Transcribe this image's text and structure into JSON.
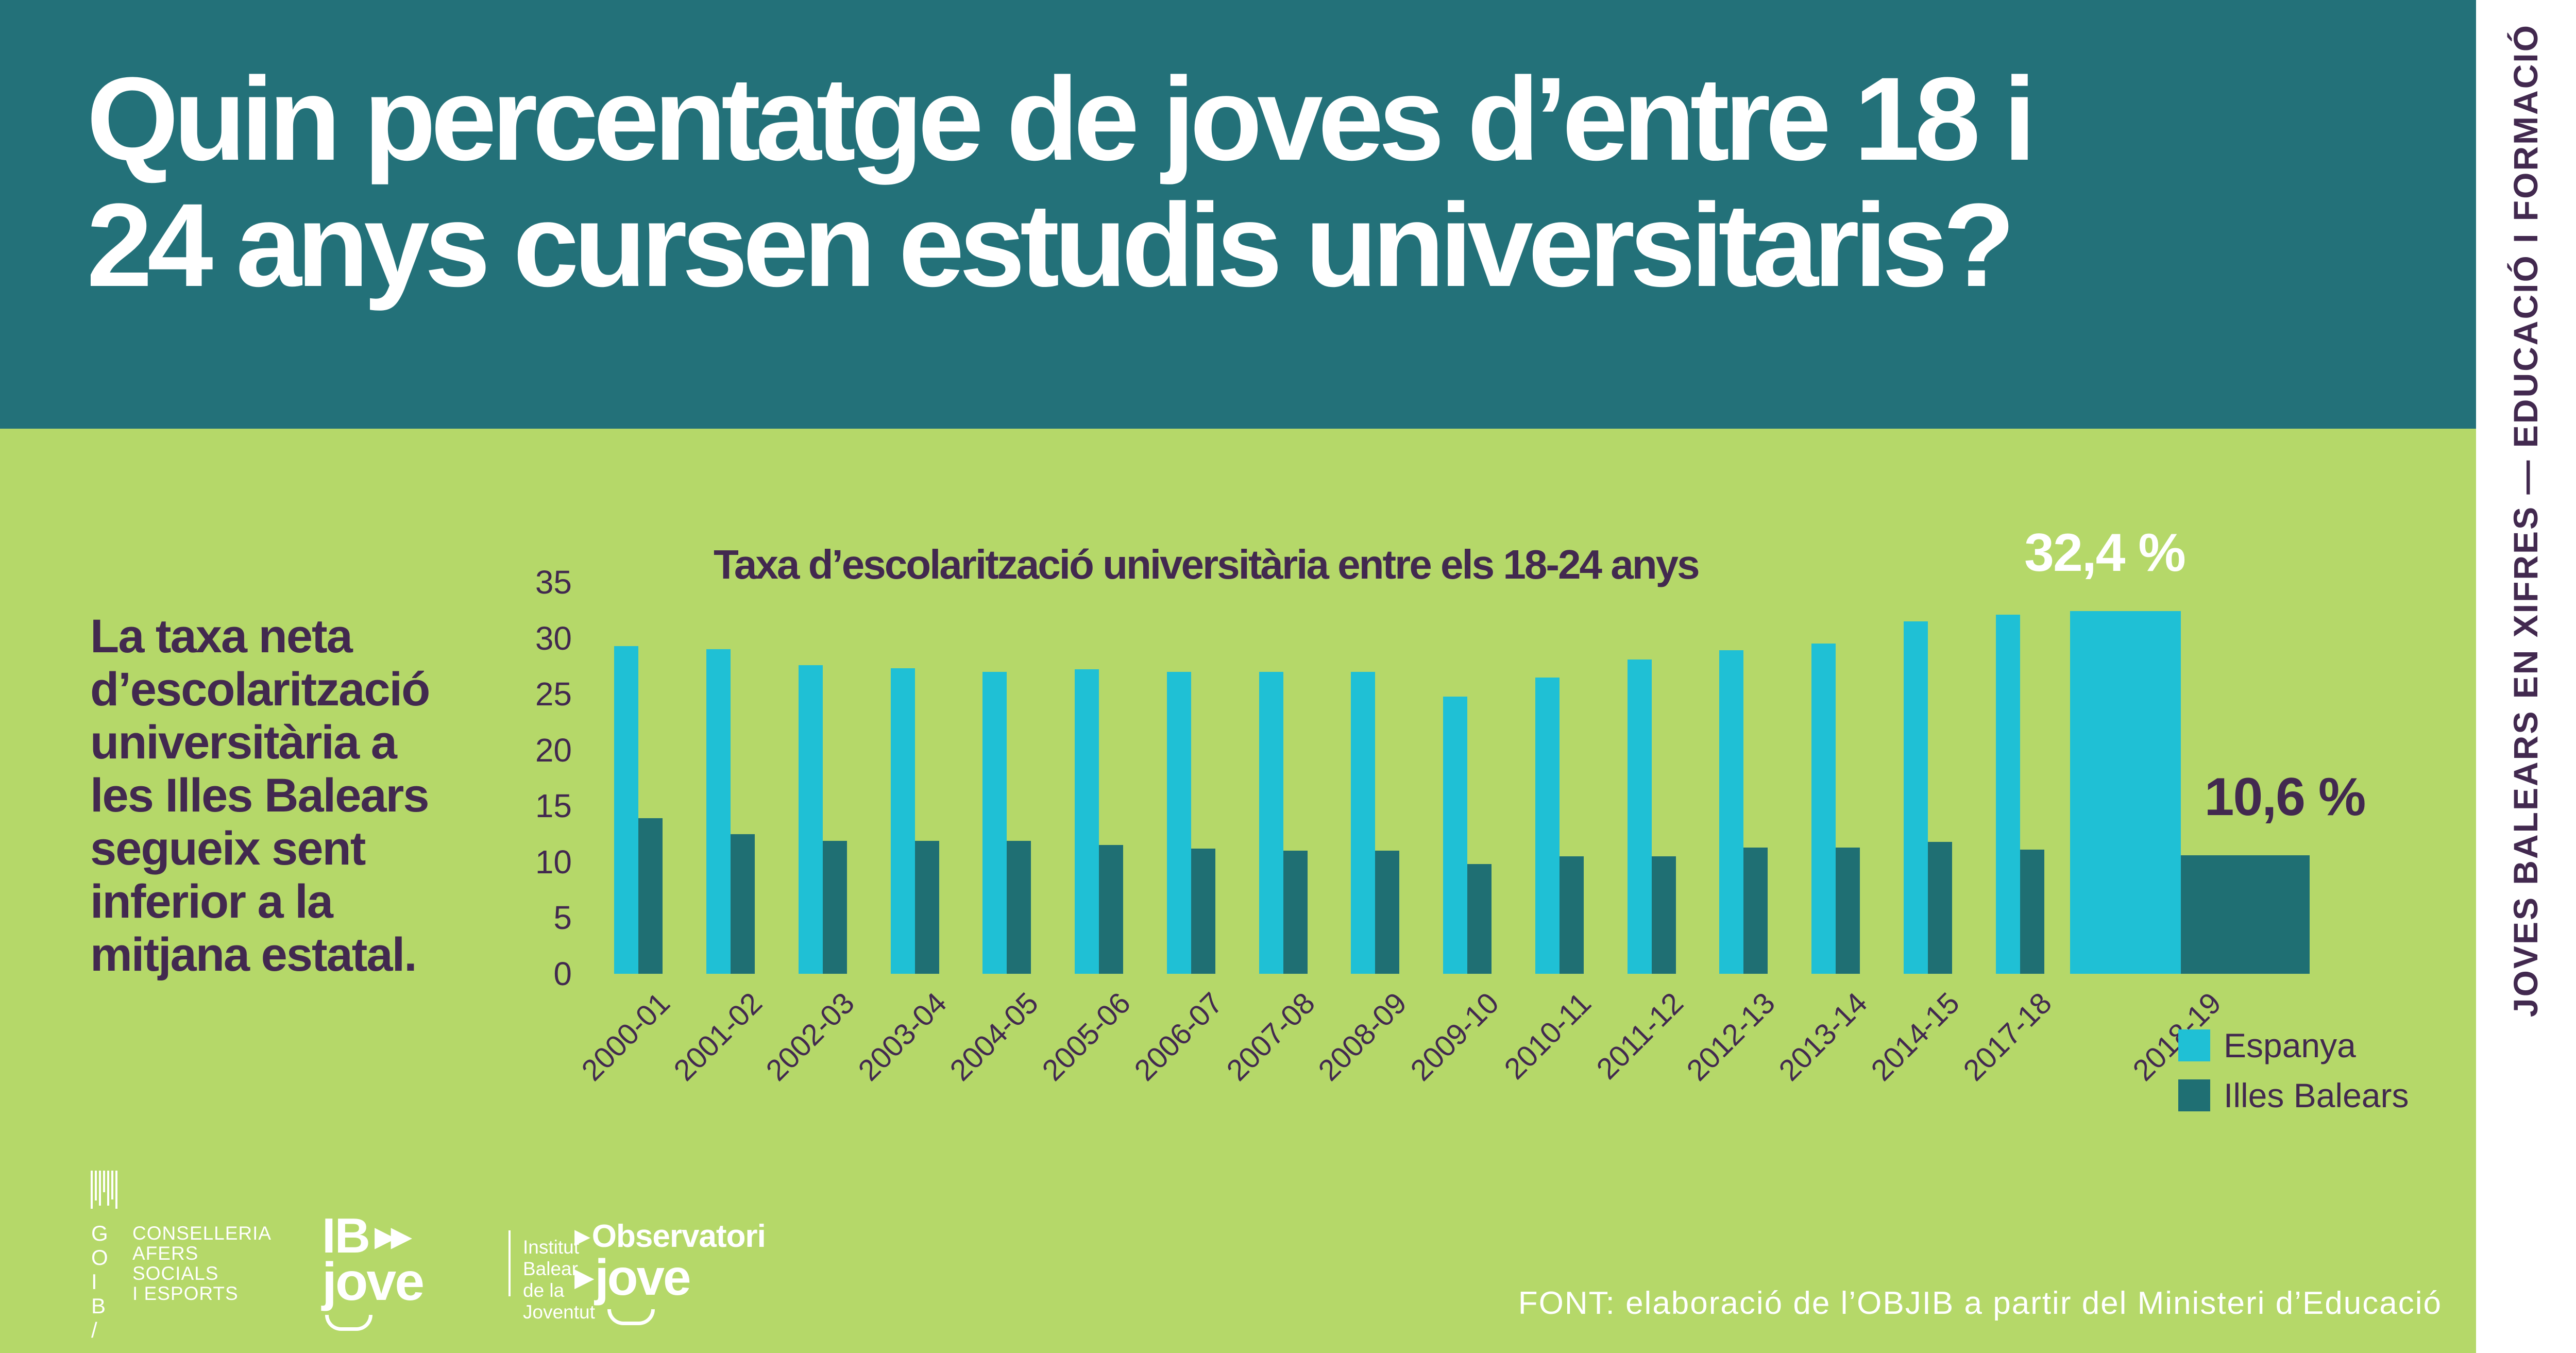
{
  "header": {
    "title_lines": [
      "Quin percentatge de joves d’entre 18 i",
      "24 anys cursen estudis universitaris?"
    ]
  },
  "sidebar": {
    "vertical_label": "JOVES BALEARS EN XIFRES — EDUCACIÓ I FORMACIÓ"
  },
  "intro": {
    "lines": [
      "La taxa neta",
      "d’escolarització",
      "universitària a",
      "les Illes Balears",
      "segueix sent",
      "inferior a la",
      "mitjana estatal."
    ]
  },
  "chart_data": {
    "type": "bar",
    "title": "Taxa d’escolarització universitària entre els 18-24 anys",
    "categories": [
      "2000-01",
      "2001-02",
      "2002-03",
      "2003-04",
      "2004-05",
      "2005-06",
      "2006-07",
      "2007-08",
      "2008-09",
      "2009-10",
      "2010-11",
      "2011-12",
      "2012-13",
      "2013-14",
      "2014-15",
      "2017-18",
      "2018-19"
    ],
    "series": [
      {
        "name": "Espanya",
        "color": "#1FC0D5",
        "values": [
          29.3,
          29.0,
          27.6,
          27.3,
          27.0,
          27.2,
          27.0,
          27.0,
          27.0,
          24.8,
          26.5,
          28.1,
          28.9,
          29.5,
          31.5,
          32.1,
          32.4
        ]
      },
      {
        "name": "Illes Balears",
        "color": "#1F6F73",
        "values": [
          13.9,
          12.5,
          11.9,
          11.9,
          11.9,
          11.5,
          11.2,
          11.0,
          11.0,
          9.8,
          10.5,
          10.5,
          11.3,
          11.3,
          11.8,
          11.1,
          10.6
        ]
      }
    ],
    "ylabel": "",
    "xlabel": "",
    "ylim": [
      0,
      35
    ],
    "yticks": [
      0,
      5,
      10,
      15,
      20,
      25,
      30,
      35
    ],
    "grid": false,
    "legend_position": "bottom-right",
    "highlight_category": "2018-19",
    "annotations": [
      {
        "text": "32,4 %",
        "series": "Espanya",
        "category": "2018-19",
        "color": "#FFFFFF"
      },
      {
        "text": "10,6 %",
        "series": "Illes Balears",
        "category": "2018-19",
        "color": "#42294F"
      }
    ]
  },
  "footer": {
    "source": "FONT: elaboració de l’OBJIB a partir del Ministeri d’Educació"
  },
  "logos": {
    "goib": {
      "letters": [
        "G",
        "O",
        "I",
        "B",
        "/"
      ],
      "lines": [
        "CONSELLERIA",
        "AFERS SOCIALS",
        "I ESPORTS"
      ]
    },
    "ibjove": {
      "acronym": "IB",
      "arrows": "▶▶",
      "name": "jove",
      "desc_lines": [
        "Institut Balear",
        "de la Joventut"
      ]
    },
    "observatori": {
      "line1": "Observatori",
      "line2": "jove"
    }
  },
  "colors": {
    "header_bg": "#237179",
    "body_bg": "#B5D869",
    "bar_espanya": "#1FC0D5",
    "bar_illes_balears": "#1F6F73",
    "text_dark": "#42294F",
    "text_white": "#FFFFFF"
  }
}
